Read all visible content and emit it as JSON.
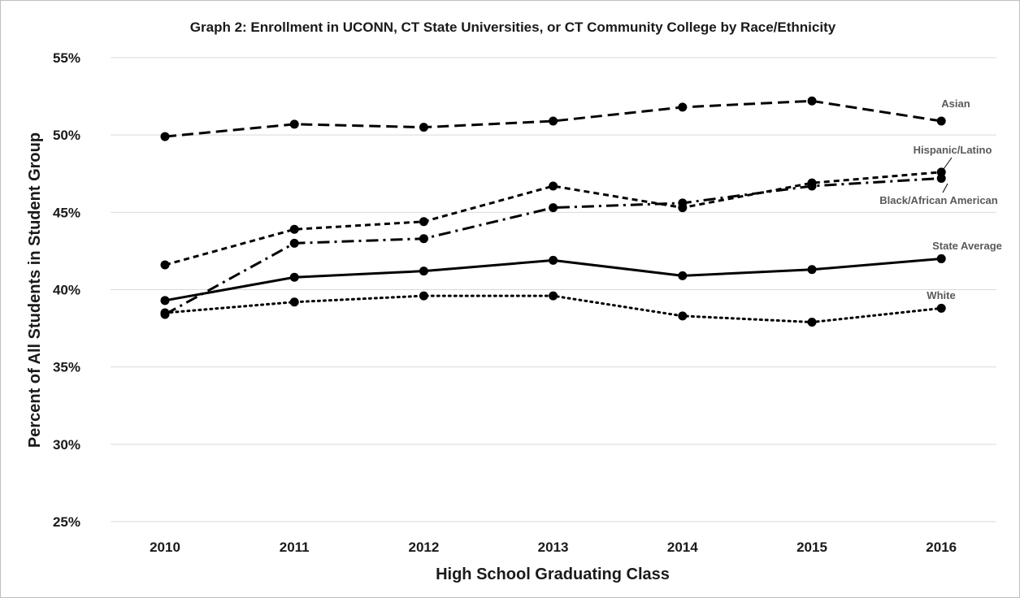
{
  "chart_data": {
    "type": "line",
    "title": "Graph 2: Enrollment in UCONN, CT State Universities, or CT Community College by Race/Ethnicity",
    "xlabel": "High School Graduating Class",
    "ylabel": "Percent of All Students in Student Group",
    "categories": [
      "2010",
      "2011",
      "2012",
      "2013",
      "2014",
      "2015",
      "2016"
    ],
    "ylim": [
      25,
      55
    ],
    "yticks": [
      "25%",
      "30%",
      "35%",
      "40%",
      "45%",
      "50%",
      "55%"
    ],
    "grid": true,
    "legend": "inline labels at right end of each series",
    "series": [
      {
        "name": "Asian",
        "style": "long-dash",
        "values": [
          49.9,
          50.7,
          50.5,
          50.9,
          51.8,
          52.2,
          50.9
        ]
      },
      {
        "name": "Hispanic/Latino",
        "style": "short-dash",
        "values": [
          41.6,
          43.9,
          44.4,
          46.7,
          45.3,
          46.9,
          47.6
        ]
      },
      {
        "name": "Black/African American",
        "style": "dash-dot",
        "values": [
          38.4,
          43.0,
          43.3,
          45.3,
          45.6,
          46.7,
          47.2
        ]
      },
      {
        "name": "State Average",
        "style": "solid",
        "values": [
          39.3,
          40.8,
          41.2,
          41.9,
          40.9,
          41.3,
          42.0
        ]
      },
      {
        "name": "White",
        "style": "dotted",
        "values": [
          38.5,
          39.2,
          39.6,
          39.6,
          38.3,
          37.9,
          38.8
        ]
      }
    ]
  }
}
